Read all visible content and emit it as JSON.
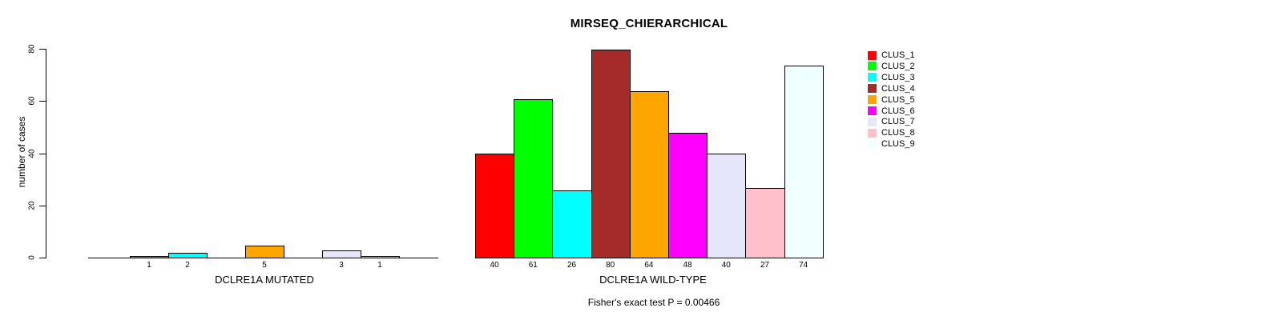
{
  "chart_data": {
    "type": "bar",
    "title": "MIRSEQ_CHIERARCHICAL",
    "ylabel": "number of cases",
    "ylim": [
      0,
      80
    ],
    "yticks": [
      0,
      20,
      40,
      60,
      80
    ],
    "grid": false,
    "legend_position": "right-of-plot",
    "series": [
      {
        "name": "CLUS_1",
        "color": "#FF0000"
      },
      {
        "name": "CLUS_2",
        "color": "#00FF00"
      },
      {
        "name": "CLUS_3",
        "color": "#00FFFF"
      },
      {
        "name": "CLUS_4",
        "color": "#A52A2A"
      },
      {
        "name": "CLUS_5",
        "color": "#FFA500"
      },
      {
        "name": "CLUS_6",
        "color": "#FF00FF"
      },
      {
        "name": "CLUS_7",
        "color": "#E6E6FA"
      },
      {
        "name": "CLUS_8",
        "color": "#FFC0CB"
      },
      {
        "name": "CLUS_9",
        "color": "#F0FFFF"
      }
    ],
    "groups": [
      {
        "xlabel": "DCLRE1A MUTATED",
        "values": [
          0,
          1,
          2,
          0,
          5,
          0,
          3,
          1,
          0
        ]
      },
      {
        "xlabel": "DCLRE1A WILD-TYPE",
        "values": [
          40,
          61,
          26,
          80,
          64,
          48,
          40,
          27,
          74
        ]
      }
    ],
    "annotation": "Fisher's exact test P = 0.00466"
  }
}
